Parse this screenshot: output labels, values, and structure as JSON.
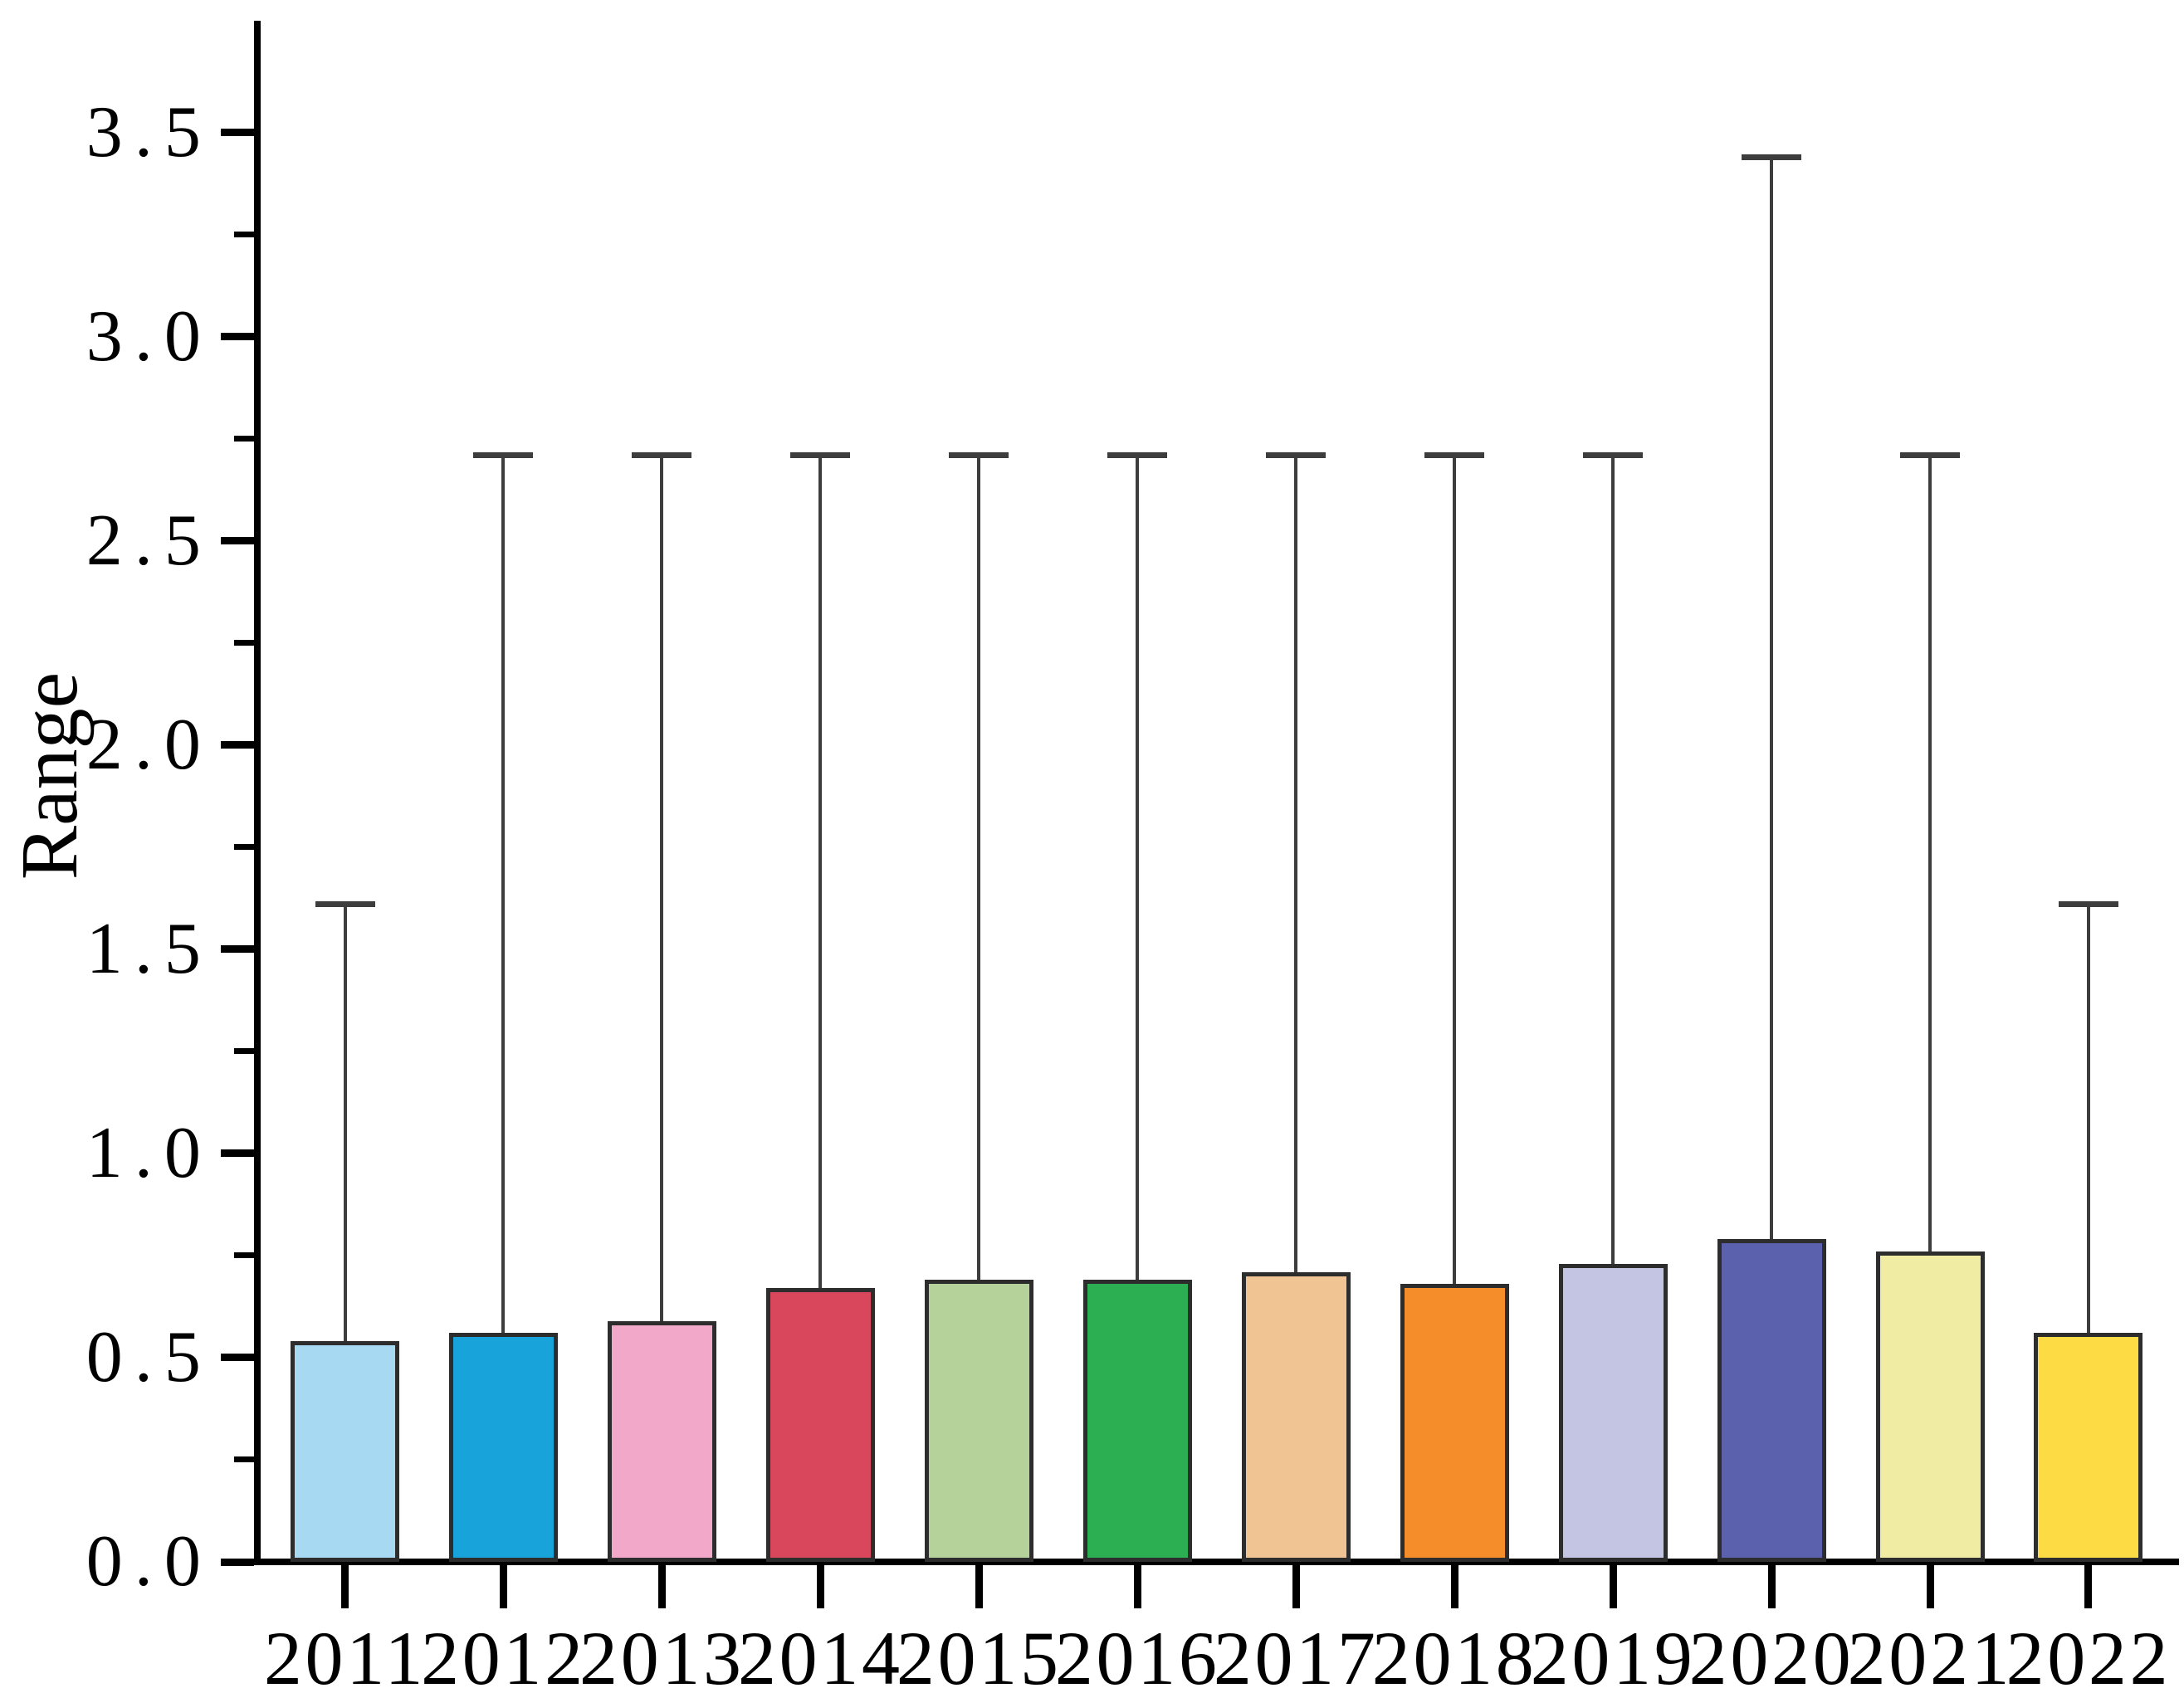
{
  "chart_data": {
    "type": "bar",
    "title": "",
    "xlabel": "",
    "ylabel": "Range",
    "categories": [
      "2011",
      "2012",
      "2013",
      "2014",
      "2015",
      "2016",
      "2017",
      "2018",
      "2019",
      "2020",
      "2021",
      "2022"
    ],
    "values": [
      0.54,
      0.56,
      0.59,
      0.67,
      0.69,
      0.69,
      0.71,
      0.68,
      0.73,
      0.79,
      0.76,
      0.56
    ],
    "whisker_tops": [
      1.61,
      2.71,
      2.71,
      2.71,
      2.71,
      2.71,
      2.71,
      2.71,
      2.71,
      3.44,
      2.71,
      1.61
    ],
    "bar_colors": [
      "#A8D9F2",
      "#18A3DB",
      "#F2A9C9",
      "#D9475C",
      "#B4D29A",
      "#2CAE52",
      "#F1C593",
      "#F68D2B",
      "#C4C5E3",
      "#5B61AC",
      "#F1ECA4",
      "#FCDB45"
    ],
    "bar_edge_color": "#2d2d2d",
    "whisker_color": "#3d3d3d",
    "ylim": [
      0,
      3.78
    ],
    "ytick_major_values": [
      0.0,
      0.5,
      1.0,
      1.5,
      2.0,
      2.5,
      3.0,
      3.5
    ],
    "ytick_labels": [
      "0.0",
      "0.5",
      "1.0",
      "1.5",
      "2.0",
      "2.5",
      "3.0",
      "3.5"
    ],
    "ytick_minor_step": 0.25,
    "grid": "off",
    "legend": "none"
  }
}
